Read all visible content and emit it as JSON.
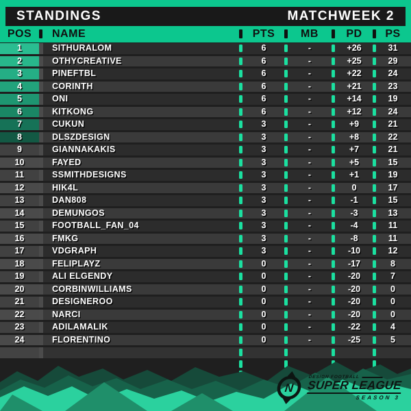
{
  "title_bar": {
    "title": "STANDINGS",
    "matchweek": "MATCHWEEK 2"
  },
  "columns": {
    "pos": "POS",
    "name": "NAME",
    "pts": "PTS",
    "mb": "MB",
    "pd": "PD",
    "ps": "PS",
    "separator": "|"
  },
  "rows": [
    {
      "pos": "1",
      "name": "SITHURALOM",
      "pts": "6",
      "mb": "-",
      "pd": "+26",
      "ps": "31"
    },
    {
      "pos": "2",
      "name": "OTHYCREATIVE",
      "pts": "6",
      "mb": "-",
      "pd": "+25",
      "ps": "29"
    },
    {
      "pos": "3",
      "name": "PINEFTBL",
      "pts": "6",
      "mb": "-",
      "pd": "+22",
      "ps": "24"
    },
    {
      "pos": "4",
      "name": "CORINTH",
      "pts": "6",
      "mb": "-",
      "pd": "+21",
      "ps": "23"
    },
    {
      "pos": "5",
      "name": "ONI",
      "pts": "6",
      "mb": "-",
      "pd": "+14",
      "ps": "19"
    },
    {
      "pos": "6",
      "name": "KITKONG",
      "pts": "6",
      "mb": "-",
      "pd": "+12",
      "ps": "24"
    },
    {
      "pos": "7",
      "name": "CUKUN",
      "pts": "3",
      "mb": "-",
      "pd": "+9",
      "ps": "21"
    },
    {
      "pos": "8",
      "name": "DLSZDESIGN",
      "pts": "3",
      "mb": "-",
      "pd": "+8",
      "ps": "22"
    },
    {
      "pos": "9",
      "name": "GIANNAKAKIS",
      "pts": "3",
      "mb": "-",
      "pd": "+7",
      "ps": "21"
    },
    {
      "pos": "10",
      "name": "FAYED",
      "pts": "3",
      "mb": "-",
      "pd": "+5",
      "ps": "15"
    },
    {
      "pos": "11",
      "name": "SSMITHDESIGNS",
      "pts": "3",
      "mb": "-",
      "pd": "+1",
      "ps": "19"
    },
    {
      "pos": "12",
      "name": "HIK4L",
      "pts": "3",
      "mb": "-",
      "pd": "0",
      "ps": "17"
    },
    {
      "pos": "13",
      "name": "DAN808",
      "pts": "3",
      "mb": "-",
      "pd": "-1",
      "ps": "15"
    },
    {
      "pos": "14",
      "name": "DEMUNGOS",
      "pts": "3",
      "mb": "-",
      "pd": "-3",
      "ps": "13"
    },
    {
      "pos": "15",
      "name": "FOOTBALL_FAN_04",
      "pts": "3",
      "mb": "-",
      "pd": "-4",
      "ps": "11"
    },
    {
      "pos": "16",
      "name": "FMKG",
      "pts": "3",
      "mb": "-",
      "pd": "-8",
      "ps": "11"
    },
    {
      "pos": "17",
      "name": "VDGRAPH",
      "pts": "3",
      "mb": "-",
      "pd": "-10",
      "ps": "12"
    },
    {
      "pos": "18",
      "name": "FELIPLAYZ",
      "pts": "0",
      "mb": "-",
      "pd": "-17",
      "ps": "8"
    },
    {
      "pos": "19",
      "name": "ALI ELGENDY",
      "pts": "0",
      "mb": "-",
      "pd": "-20",
      "ps": "7"
    },
    {
      "pos": "20",
      "name": "CORBINWILLIAMS",
      "pts": "0",
      "mb": "-",
      "pd": "-20",
      "ps": "0"
    },
    {
      "pos": "21",
      "name": "DESIGNEROO",
      "pts": "0",
      "mb": "-",
      "pd": "-20",
      "ps": "0"
    },
    {
      "pos": "22",
      "name": "NARCI",
      "pts": "0",
      "mb": "-",
      "pd": "-20",
      "ps": "0"
    },
    {
      "pos": "23",
      "name": "ADILAMALIK",
      "pts": "0",
      "mb": "-",
      "pd": "-22",
      "ps": "4"
    },
    {
      "pos": "24",
      "name": "FLORENTINO",
      "pts": "0",
      "mb": "-",
      "pd": "-25",
      "ps": "5"
    }
  ],
  "logo": {
    "brand_top": "DESIGN FOOTBALL",
    "brand_main": "SUPER LEAGUE",
    "season": "SEASON 3",
    "monogram": "N"
  },
  "colors": {
    "accent_green": "#0cc78e",
    "tick_green": "#1be0a0",
    "pos_gradient": [
      "#2abd91",
      "#28b78b",
      "#25ae85",
      "#22a37c",
      "#1e9671",
      "#1a8765",
      "#167257",
      "#135944"
    ],
    "pos_cell_light": "#4a4a4a",
    "pos_cell_dark": "#414141",
    "mountain_bright": "#2bd19e",
    "mountain_mid": "#1f8f6a",
    "mountain_dark": "#17624a",
    "mountain_darkest": "#164a3a"
  }
}
